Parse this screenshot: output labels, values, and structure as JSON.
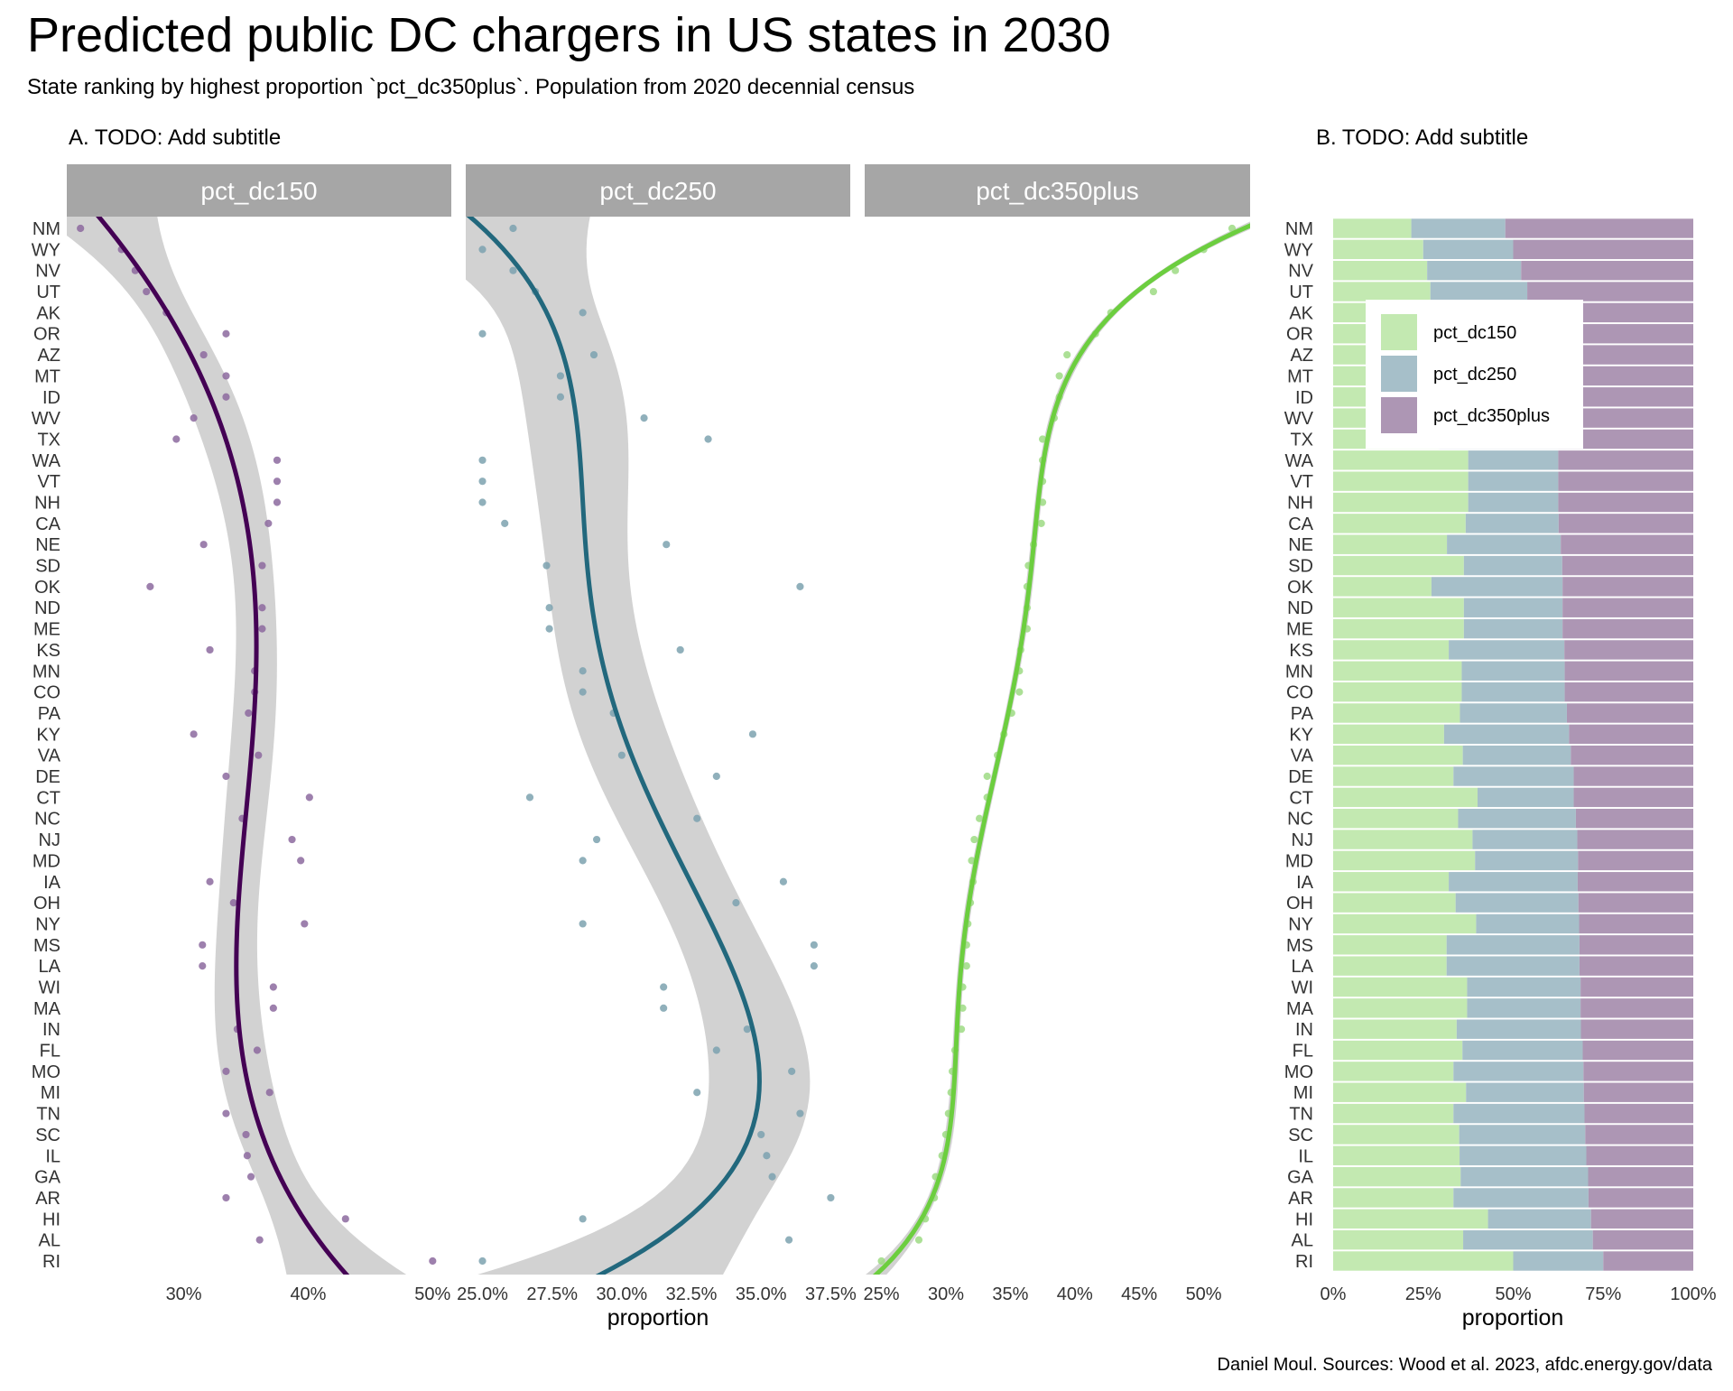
{
  "title": "Predicted public DC chargers in US states in 2030",
  "subtitle": "State ranking by highest proportion `pct_dc350plus`. Population from 2020 decennial census",
  "caption": "Daniel Moul. Sources: Wood et al. 2023, afdc.energy.gov/data",
  "colors": {
    "pct_dc150": "#440154",
    "pct_dc250": "#22687d",
    "pct_dc350plus": "#6cce3f",
    "bar_dc150": "#c3e9b1",
    "bar_dc250": "#a6bfc9",
    "bar_dc350plus": "#ad96b4",
    "strip": "#a6a6a6",
    "band": "#d0d0d0"
  },
  "chart_data": [
    {
      "type": "scatter",
      "subtitle": "A. TODO: Add subtitle",
      "xlabel": "proportion",
      "smoother": "loess with confidence band",
      "facets": [
        {
          "name": "pct_dc150",
          "xlim": [
            20.6,
            51.5
          ],
          "ticks": [
            30,
            40,
            50
          ],
          "tick_labels": [
            "30%",
            "40%",
            "50%"
          ]
        },
        {
          "name": "pct_dc250",
          "xlim": [
            24.4,
            38.2
          ],
          "ticks": [
            25,
            27.5,
            30,
            32.5,
            35,
            37.5
          ],
          "tick_labels": [
            "25.0%",
            "27.5%",
            "30.0%",
            "32.5%",
            "35.0%",
            "37.5%"
          ]
        },
        {
          "name": "pct_dc350plus",
          "xlim": [
            23.7,
            53.6
          ],
          "ticks": [
            25,
            30,
            35,
            40,
            45,
            50
          ],
          "tick_labels": [
            "25%",
            "30%",
            "35%",
            "40%",
            "45%",
            "50%"
          ]
        }
      ]
    },
    {
      "type": "bar",
      "stacked": true,
      "orientation": "horizontal",
      "subtitle": "B. TODO: Add subtitle",
      "xlabel": "proportion",
      "xlim": [
        0,
        100
      ],
      "ticks": [
        0,
        25,
        50,
        75,
        100
      ],
      "tick_labels": [
        "0%",
        "25%",
        "50%",
        "75%",
        "100%"
      ],
      "legend": {
        "position": "top-center inside",
        "entries": [
          "pct_dc150",
          "pct_dc250",
          "pct_dc350plus"
        ]
      }
    }
  ],
  "states": [
    "NM",
    "WY",
    "NV",
    "UT",
    "AK",
    "OR",
    "AZ",
    "MT",
    "ID",
    "WV",
    "TX",
    "WA",
    "VT",
    "NH",
    "CA",
    "NE",
    "SD",
    "OK",
    "ND",
    "ME",
    "KS",
    "MN",
    "CO",
    "PA",
    "KY",
    "VA",
    "DE",
    "CT",
    "NC",
    "NJ",
    "MD",
    "IA",
    "OH",
    "NY",
    "MS",
    "LA",
    "WI",
    "MA",
    "IN",
    "FL",
    "MO",
    "MI",
    "TN",
    "SC",
    "IL",
    "GA",
    "AR",
    "HI",
    "AL",
    "RI"
  ],
  "pct_dc150": [
    21.7,
    25.0,
    26.1,
    27.0,
    28.6,
    33.4,
    31.6,
    33.4,
    33.4,
    30.8,
    29.4,
    37.5,
    37.5,
    37.5,
    36.8,
    31.6,
    36.3,
    27.3,
    36.3,
    36.3,
    32.1,
    35.7,
    35.7,
    35.2,
    30.8,
    36.0,
    33.4,
    40.1,
    34.7,
    38.7,
    39.4,
    32.1,
    34.0,
    39.7,
    31.5,
    31.5,
    37.2,
    37.2,
    34.3,
    35.9,
    33.4,
    36.9,
    33.4,
    35.0,
    35.1,
    35.4,
    33.4,
    43.0,
    36.1,
    50.0
  ],
  "pct_dc250": [
    26.1,
    25.0,
    26.1,
    26.9,
    28.6,
    25.0,
    29.0,
    27.8,
    27.8,
    30.8,
    33.1,
    25.0,
    25.0,
    25.0,
    25.8,
    31.6,
    27.3,
    36.4,
    27.4,
    27.4,
    32.1,
    28.6,
    28.6,
    29.7,
    34.7,
    30.0,
    33.4,
    26.7,
    32.7,
    29.1,
    28.6,
    35.8,
    34.1,
    28.6,
    36.9,
    36.9,
    31.5,
    31.5,
    34.5,
    33.4,
    36.1,
    32.7,
    36.4,
    35.0,
    35.2,
    35.4,
    37.5,
    28.6,
    36.0,
    25.0
  ],
  "pct_dc350plus": [
    52.2,
    50.0,
    47.8,
    46.1,
    42.8,
    41.6,
    39.4,
    38.8,
    38.8,
    38.4,
    37.5,
    37.5,
    37.5,
    37.5,
    37.4,
    36.8,
    36.4,
    36.3,
    36.3,
    36.3,
    35.8,
    35.7,
    35.7,
    35.1,
    34.5,
    34.0,
    33.2,
    33.2,
    32.6,
    32.2,
    32.0,
    32.1,
    31.9,
    31.7,
    31.6,
    31.6,
    31.3,
    31.3,
    31.2,
    30.7,
    30.5,
    30.4,
    30.2,
    30.0,
    29.7,
    29.2,
    29.1,
    28.4,
    27.9,
    25.0
  ]
}
